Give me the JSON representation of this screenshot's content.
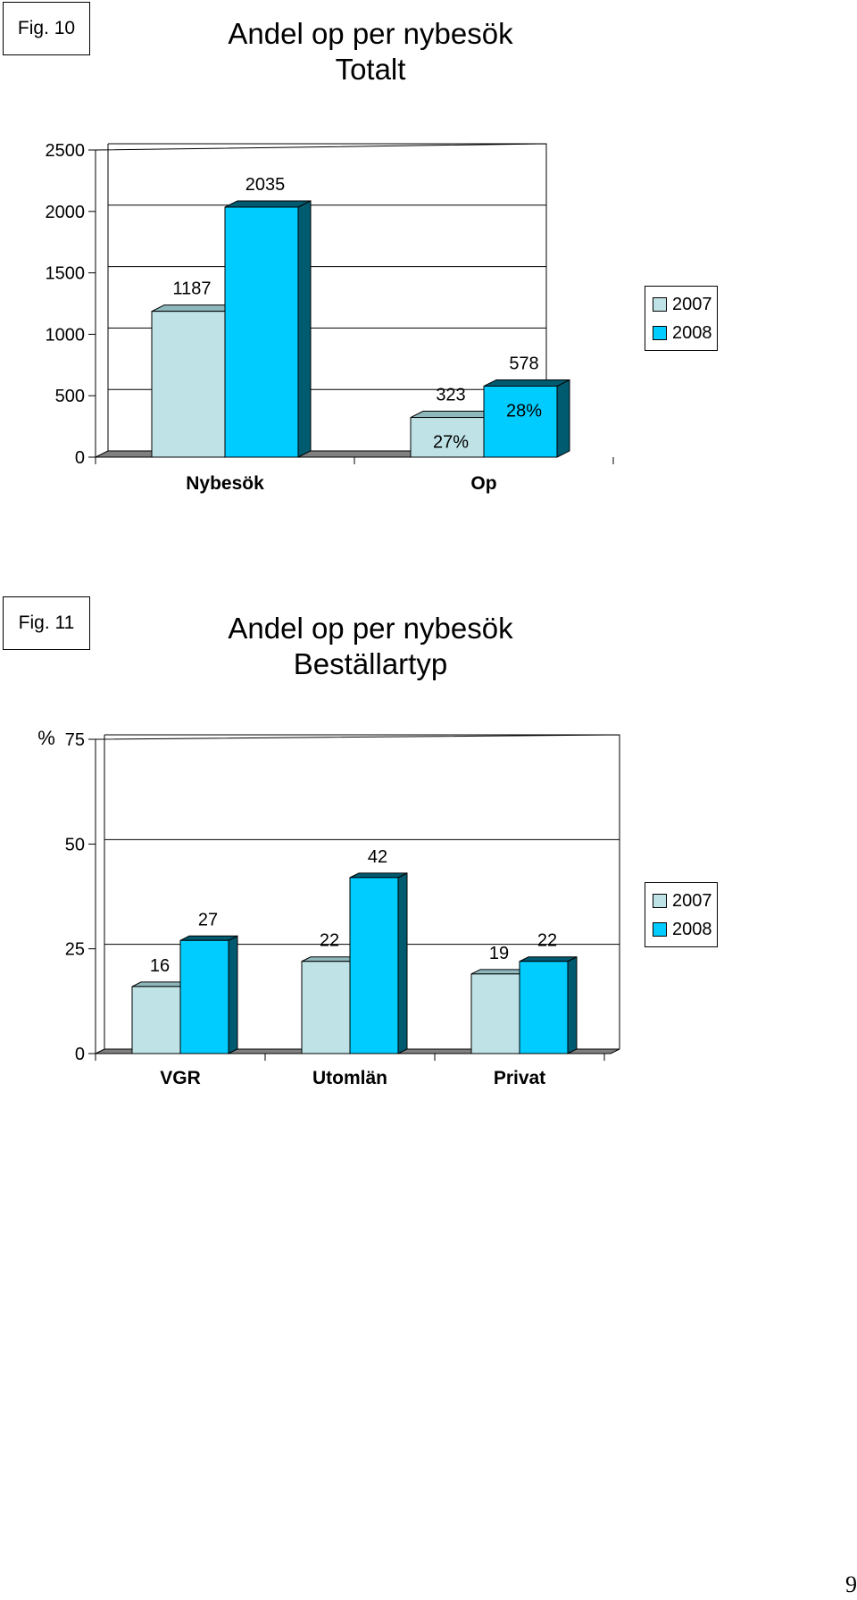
{
  "colors": {
    "s2007": "#bfe2e6",
    "s2008": "#00ccff",
    "s2008_side": "#005a70",
    "s2007_side": "#8fb8bd",
    "floor": "#808080"
  },
  "page_number": "9",
  "chart_data": [
    {
      "type": "bar",
      "fig_label": "Fig. 10",
      "title": "Andel op per nybesök",
      "subtitle": "Totalt",
      "ylabel": "",
      "categories": [
        "Nybesök",
        "Op"
      ],
      "series": [
        {
          "name": "2007",
          "values": [
            1187,
            323
          ],
          "value_labels": [
            "1187",
            "323"
          ],
          "pct_labels": [
            "",
            "27%"
          ]
        },
        {
          "name": "2008",
          "values": [
            2035,
            578
          ],
          "value_labels": [
            "2035",
            "578"
          ],
          "pct_labels": [
            "",
            "28%"
          ]
        }
      ],
      "ylim": [
        0,
        2500
      ],
      "yticks": [
        "0",
        "500",
        "1000",
        "1500",
        "2000",
        "2500"
      ],
      "ytick_values": [
        0,
        500,
        1000,
        1500,
        2000,
        2500
      ],
      "grid": true,
      "legend": "right"
    },
    {
      "type": "bar",
      "fig_label": "Fig. 11",
      "title": "Andel op per nybesök",
      "subtitle": "Beställartyp",
      "ylabel": "%",
      "categories": [
        "VGR",
        "Utomlän",
        "Privat"
      ],
      "series": [
        {
          "name": "2007",
          "values": [
            16,
            22,
            19
          ],
          "value_labels": [
            "16",
            "22",
            "19"
          ],
          "pct_labels": [
            "",
            "",
            ""
          ]
        },
        {
          "name": "2008",
          "values": [
            27,
            42,
            22
          ],
          "value_labels": [
            "27",
            "42",
            "22"
          ],
          "pct_labels": [
            "",
            "",
            ""
          ]
        }
      ],
      "ylim": [
        0,
        75
      ],
      "yticks": [
        "0",
        "25",
        "50",
        "75"
      ],
      "ytick_values": [
        0,
        25,
        50,
        75
      ],
      "grid": true,
      "legend": "right"
    }
  ]
}
